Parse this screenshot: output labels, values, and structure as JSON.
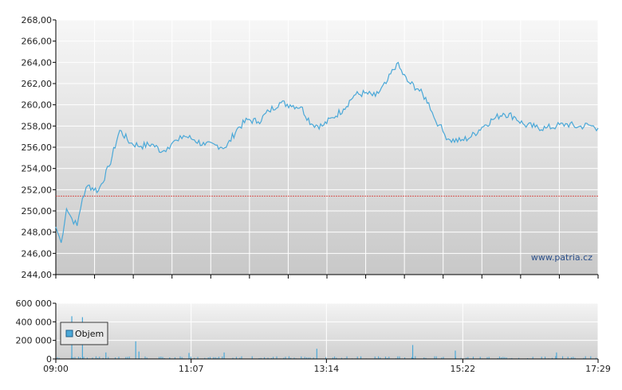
{
  "watermark": "www.patria.cz",
  "legend": {
    "label": "Objem"
  },
  "colors": {
    "line": "#4aa8d8",
    "reference": "#d9534f",
    "volume": "#4aa8d8",
    "grid": "#ffffff"
  },
  "chart_data": [
    {
      "type": "line",
      "name": "price",
      "ylim": [
        244,
        268
      ],
      "y_ticks": [
        "268,00",
        "266,00",
        "264,00",
        "262,00",
        "260,00",
        "258,00",
        "256,00",
        "254,00",
        "252,00",
        "250,00",
        "248,00",
        "246,00",
        "244,00"
      ],
      "x_range": [
        "09:00",
        "17:29"
      ],
      "x_tick_labels": [
        "09:00",
        "11:07",
        "13:14",
        "15:22",
        "17:29"
      ],
      "reference_line": 251.4,
      "x": [
        "09:00",
        "09:05",
        "09:10",
        "09:15",
        "09:20",
        "09:25",
        "09:30",
        "09:40",
        "09:50",
        "10:00",
        "10:10",
        "10:20",
        "10:30",
        "10:40",
        "10:45",
        "10:50",
        "10:55",
        "11:00",
        "11:10",
        "11:20",
        "11:30",
        "11:40",
        "11:50",
        "12:00",
        "12:10",
        "12:20",
        "12:30",
        "12:40",
        "12:50",
        "13:00",
        "13:10",
        "13:20",
        "13:30",
        "13:40",
        "13:50",
        "14:00",
        "14:10",
        "14:20",
        "14:30",
        "14:40",
        "14:50",
        "14:55",
        "15:00",
        "15:05",
        "15:10",
        "15:20",
        "15:30",
        "15:40",
        "15:50",
        "16:00",
        "16:10",
        "16:20",
        "16:30",
        "16:40",
        "16:50",
        "17:00",
        "17:10",
        "17:20",
        "17:29"
      ],
      "values": [
        248.5,
        247.0,
        250.2,
        249.3,
        248.6,
        251.2,
        252.4,
        251.9,
        254.2,
        257.6,
        256.4,
        256.1,
        256.3,
        255.6,
        256.0,
        256.5,
        256.6,
        257.1,
        256.7,
        256.2,
        256.2,
        256.0,
        257.7,
        258.6,
        258.4,
        259.4,
        260.2,
        260.0,
        259.8,
        258.2,
        258.0,
        258.8,
        259.6,
        260.9,
        261.1,
        260.8,
        262.0,
        263.9,
        262.2,
        261.5,
        260.2,
        258.8,
        258.1,
        257.2,
        256.7,
        256.6,
        257.0,
        257.9,
        258.6,
        259.2,
        258.9,
        258.1,
        257.9,
        257.8,
        258.0,
        258.2,
        257.9,
        258.1,
        257.8
      ]
    },
    {
      "type": "bar",
      "name": "Objem",
      "ylim": [
        0,
        600000
      ],
      "y_ticks": [
        "600 000",
        "400 000",
        "200 000",
        "0"
      ],
      "spikes": [
        {
          "t": "09:15",
          "value": 460000
        },
        {
          "t": "09:25",
          "value": 450000
        },
        {
          "t": "09:47",
          "value": 70000
        },
        {
          "t": "10:15",
          "value": 190000
        },
        {
          "t": "10:18",
          "value": 80000
        },
        {
          "t": "11:05",
          "value": 65000
        },
        {
          "t": "11:38",
          "value": 70000
        },
        {
          "t": "13:05",
          "value": 110000
        },
        {
          "t": "14:35",
          "value": 150000
        },
        {
          "t": "15:15",
          "value": 90000
        },
        {
          "t": "16:50",
          "value": 70000
        }
      ],
      "baseline_max": 30000
    }
  ]
}
